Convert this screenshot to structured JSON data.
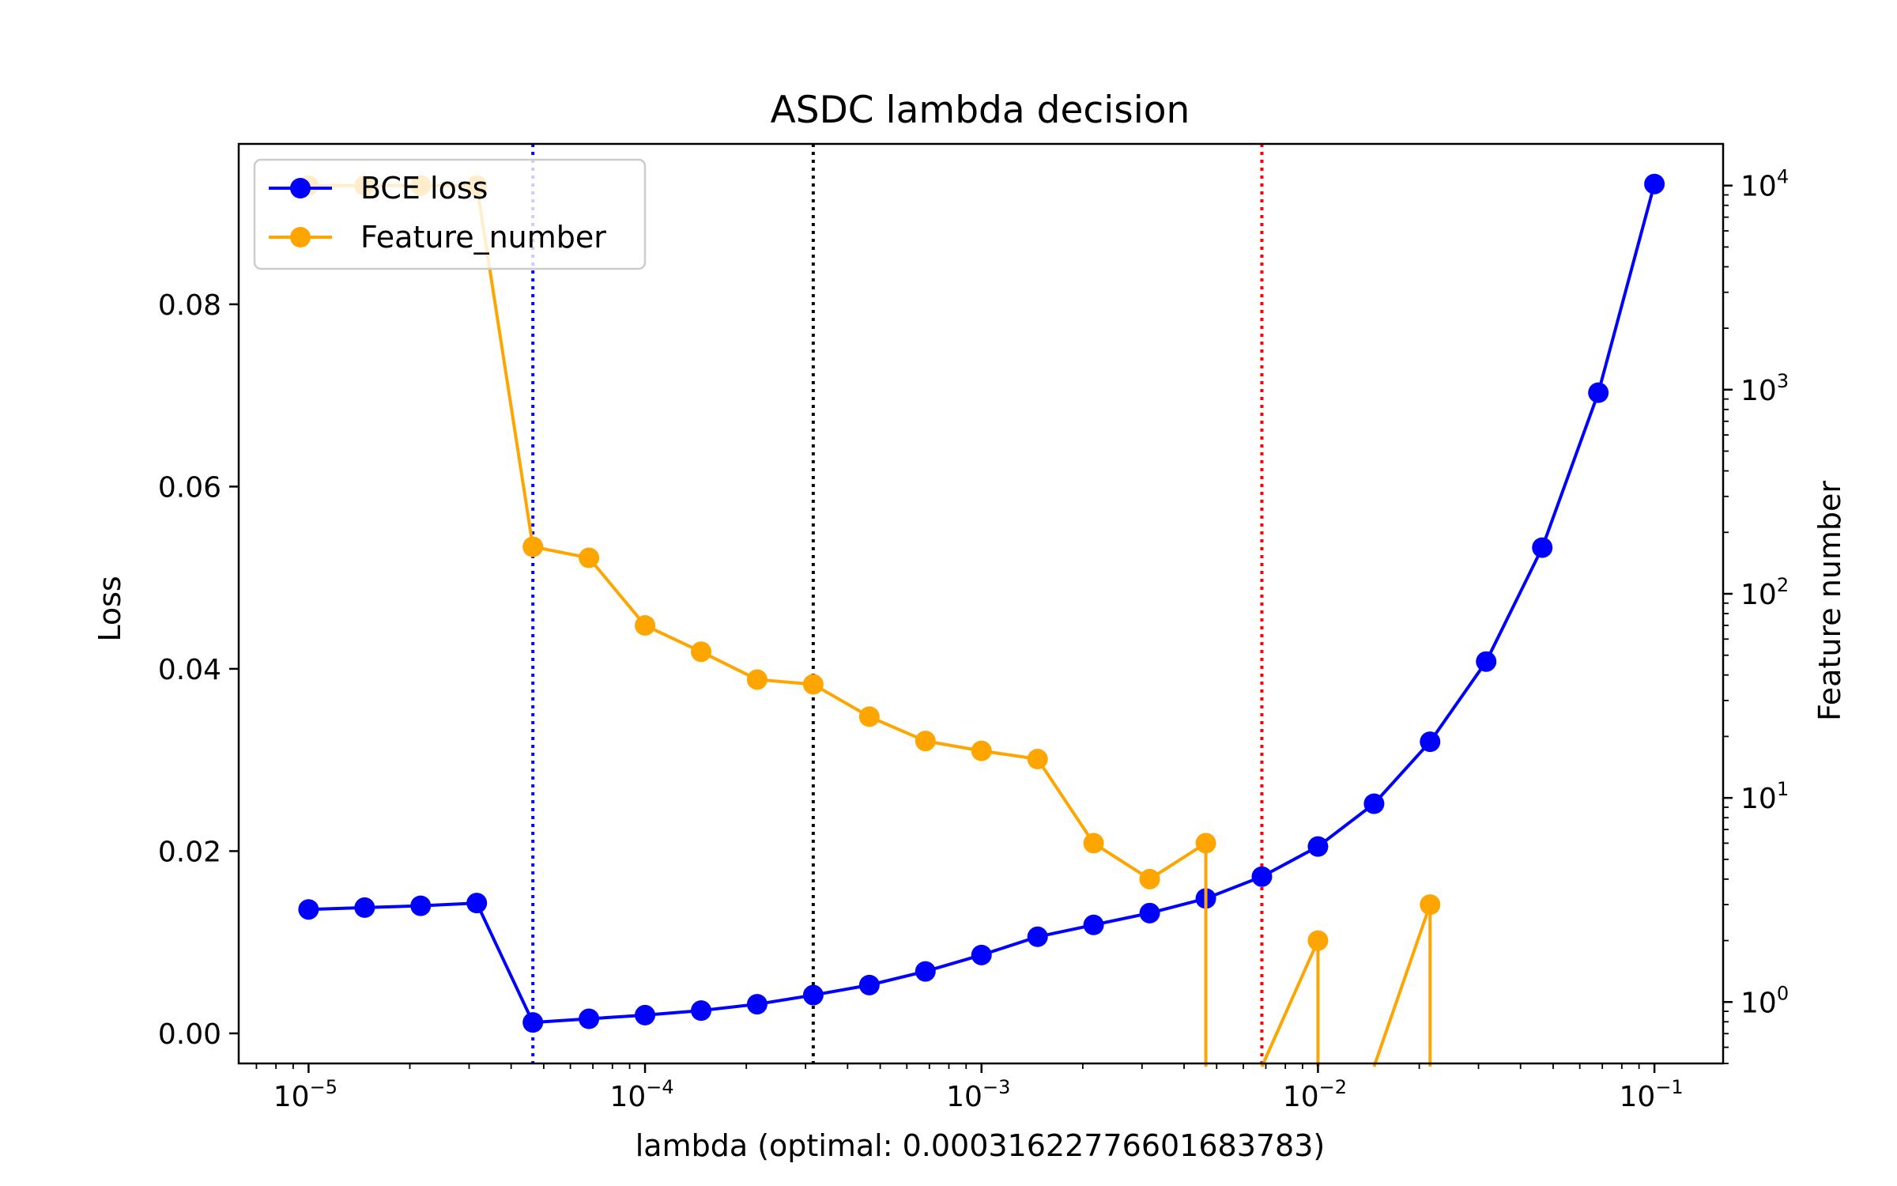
{
  "chart_data": {
    "type": "line",
    "title": "ASDC lambda decision",
    "xlabel": "lambda (optimal: 0.00031622776601683783)",
    "ylabel": "Loss",
    "y2label": "Feature number",
    "xscale": "log",
    "xlim": [
      6.2e-06,
      0.16
    ],
    "ylim": [
      -0.0033,
      0.0976
    ],
    "y2scale": "log",
    "y2lim": [
      0.5,
      16000
    ],
    "grid": false,
    "legend_position": "top-left",
    "x_ticks": [
      {
        "value": 1e-05,
        "base": "10",
        "exp": "−5"
      },
      {
        "value": 0.0001,
        "base": "10",
        "exp": "−4"
      },
      {
        "value": 0.001,
        "base": "10",
        "exp": "−3"
      },
      {
        "value": 0.01,
        "base": "10",
        "exp": "−2"
      },
      {
        "value": 0.1,
        "base": "10",
        "exp": "−1"
      }
    ],
    "y_ticks": [
      "0.00",
      "0.02",
      "0.04",
      "0.06",
      "0.08"
    ],
    "y2_ticks": [
      {
        "value": 1,
        "base": "10",
        "exp": "0"
      },
      {
        "value": 10,
        "base": "10",
        "exp": "1"
      },
      {
        "value": 100,
        "base": "10",
        "exp": "2"
      },
      {
        "value": 1000,
        "base": "10",
        "exp": "3"
      },
      {
        "value": 10000,
        "base": "10",
        "exp": "4"
      }
    ],
    "x": [
      1e-05,
      1.468e-05,
      2.154e-05,
      3.162e-05,
      4.642e-05,
      6.813e-05,
      0.0001,
      0.0001468,
      0.0002154,
      0.0003162,
      0.0004642,
      0.0006813,
      0.001,
      0.001468,
      0.002154,
      0.003162,
      0.004642,
      0.006813,
      0.01,
      0.01468,
      0.02154,
      0.03162,
      0.04642,
      0.06813,
      0.1
    ],
    "series": [
      {
        "name": "BCE loss",
        "color": "#0000ff",
        "axis": "left",
        "values": [
          0.0136,
          0.0138,
          0.014,
          0.0143,
          0.0012,
          0.0016,
          0.002,
          0.0025,
          0.0032,
          0.0042,
          0.0053,
          0.0068,
          0.0086,
          0.0106,
          0.0119,
          0.0132,
          0.0148,
          0.0172,
          0.0205,
          0.0252,
          0.032,
          0.0408,
          0.0533,
          0.0703,
          0.0932
        ]
      },
      {
        "name": "Feature_number",
        "color": "#ffa500",
        "axis": "right",
        "values": [
          10000,
          10000,
          10000,
          10000,
          170,
          150,
          70,
          52,
          38,
          36,
          25,
          19,
          17,
          15.5,
          6,
          4,
          6,
          0,
          2,
          0,
          3,
          0,
          0,
          0,
          0
        ]
      }
    ],
    "vlines": [
      {
        "x": 4.642e-05,
        "color": "#0000ff"
      },
      {
        "x": 0.0003162,
        "color": "#000000"
      },
      {
        "x": 0.006813,
        "color": "#ff0000"
      }
    ]
  }
}
